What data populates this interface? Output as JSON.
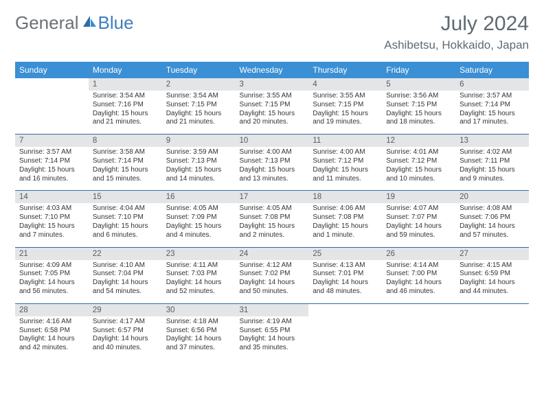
{
  "brand": {
    "part1": "General",
    "part2": "Blue"
  },
  "title": "July 2024",
  "location": "Ashibetsu, Hokkaido, Japan",
  "colors": {
    "header_bg": "#3b8fd4",
    "header_text": "#ffffff",
    "daynum_bg": "#e3e5e7",
    "border": "#2f6aa8",
    "brand_gray": "#6a7076",
    "brand_blue": "#3b7fbf",
    "body_text": "#333333",
    "title_text": "#5f6a72",
    "page_bg": "#ffffff"
  },
  "fonts": {
    "title_size": 30,
    "location_size": 17,
    "dayhead_size": 12,
    "daynum_size": 11.5,
    "cell_size": 10
  },
  "day_names": [
    "Sunday",
    "Monday",
    "Tuesday",
    "Wednesday",
    "Thursday",
    "Friday",
    "Saturday"
  ],
  "weeks": [
    [
      null,
      {
        "n": "1",
        "sunrise": "3:54 AM",
        "sunset": "7:16 PM",
        "daylight": "15 hours and 21 minutes."
      },
      {
        "n": "2",
        "sunrise": "3:54 AM",
        "sunset": "7:15 PM",
        "daylight": "15 hours and 21 minutes."
      },
      {
        "n": "3",
        "sunrise": "3:55 AM",
        "sunset": "7:15 PM",
        "daylight": "15 hours and 20 minutes."
      },
      {
        "n": "4",
        "sunrise": "3:55 AM",
        "sunset": "7:15 PM",
        "daylight": "15 hours and 19 minutes."
      },
      {
        "n": "5",
        "sunrise": "3:56 AM",
        "sunset": "7:15 PM",
        "daylight": "15 hours and 18 minutes."
      },
      {
        "n": "6",
        "sunrise": "3:57 AM",
        "sunset": "7:14 PM",
        "daylight": "15 hours and 17 minutes."
      }
    ],
    [
      {
        "n": "7",
        "sunrise": "3:57 AM",
        "sunset": "7:14 PM",
        "daylight": "15 hours and 16 minutes."
      },
      {
        "n": "8",
        "sunrise": "3:58 AM",
        "sunset": "7:14 PM",
        "daylight": "15 hours and 15 minutes."
      },
      {
        "n": "9",
        "sunrise": "3:59 AM",
        "sunset": "7:13 PM",
        "daylight": "15 hours and 14 minutes."
      },
      {
        "n": "10",
        "sunrise": "4:00 AM",
        "sunset": "7:13 PM",
        "daylight": "15 hours and 13 minutes."
      },
      {
        "n": "11",
        "sunrise": "4:00 AM",
        "sunset": "7:12 PM",
        "daylight": "15 hours and 11 minutes."
      },
      {
        "n": "12",
        "sunrise": "4:01 AM",
        "sunset": "7:12 PM",
        "daylight": "15 hours and 10 minutes."
      },
      {
        "n": "13",
        "sunrise": "4:02 AM",
        "sunset": "7:11 PM",
        "daylight": "15 hours and 9 minutes."
      }
    ],
    [
      {
        "n": "14",
        "sunrise": "4:03 AM",
        "sunset": "7:10 PM",
        "daylight": "15 hours and 7 minutes."
      },
      {
        "n": "15",
        "sunrise": "4:04 AM",
        "sunset": "7:10 PM",
        "daylight": "15 hours and 6 minutes."
      },
      {
        "n": "16",
        "sunrise": "4:05 AM",
        "sunset": "7:09 PM",
        "daylight": "15 hours and 4 minutes."
      },
      {
        "n": "17",
        "sunrise": "4:05 AM",
        "sunset": "7:08 PM",
        "daylight": "15 hours and 2 minutes."
      },
      {
        "n": "18",
        "sunrise": "4:06 AM",
        "sunset": "7:08 PM",
        "daylight": "15 hours and 1 minute."
      },
      {
        "n": "19",
        "sunrise": "4:07 AM",
        "sunset": "7:07 PM",
        "daylight": "14 hours and 59 minutes."
      },
      {
        "n": "20",
        "sunrise": "4:08 AM",
        "sunset": "7:06 PM",
        "daylight": "14 hours and 57 minutes."
      }
    ],
    [
      {
        "n": "21",
        "sunrise": "4:09 AM",
        "sunset": "7:05 PM",
        "daylight": "14 hours and 56 minutes."
      },
      {
        "n": "22",
        "sunrise": "4:10 AM",
        "sunset": "7:04 PM",
        "daylight": "14 hours and 54 minutes."
      },
      {
        "n": "23",
        "sunrise": "4:11 AM",
        "sunset": "7:03 PM",
        "daylight": "14 hours and 52 minutes."
      },
      {
        "n": "24",
        "sunrise": "4:12 AM",
        "sunset": "7:02 PM",
        "daylight": "14 hours and 50 minutes."
      },
      {
        "n": "25",
        "sunrise": "4:13 AM",
        "sunset": "7:01 PM",
        "daylight": "14 hours and 48 minutes."
      },
      {
        "n": "26",
        "sunrise": "4:14 AM",
        "sunset": "7:00 PM",
        "daylight": "14 hours and 46 minutes."
      },
      {
        "n": "27",
        "sunrise": "4:15 AM",
        "sunset": "6:59 PM",
        "daylight": "14 hours and 44 minutes."
      }
    ],
    [
      {
        "n": "28",
        "sunrise": "4:16 AM",
        "sunset": "6:58 PM",
        "daylight": "14 hours and 42 minutes."
      },
      {
        "n": "29",
        "sunrise": "4:17 AM",
        "sunset": "6:57 PM",
        "daylight": "14 hours and 40 minutes."
      },
      {
        "n": "30",
        "sunrise": "4:18 AM",
        "sunset": "6:56 PM",
        "daylight": "14 hours and 37 minutes."
      },
      {
        "n": "31",
        "sunrise": "4:19 AM",
        "sunset": "6:55 PM",
        "daylight": "14 hours and 35 minutes."
      },
      null,
      null,
      null
    ]
  ],
  "labels": {
    "sunrise": "Sunrise: ",
    "sunset": "Sunset: ",
    "daylight": "Daylight: "
  }
}
